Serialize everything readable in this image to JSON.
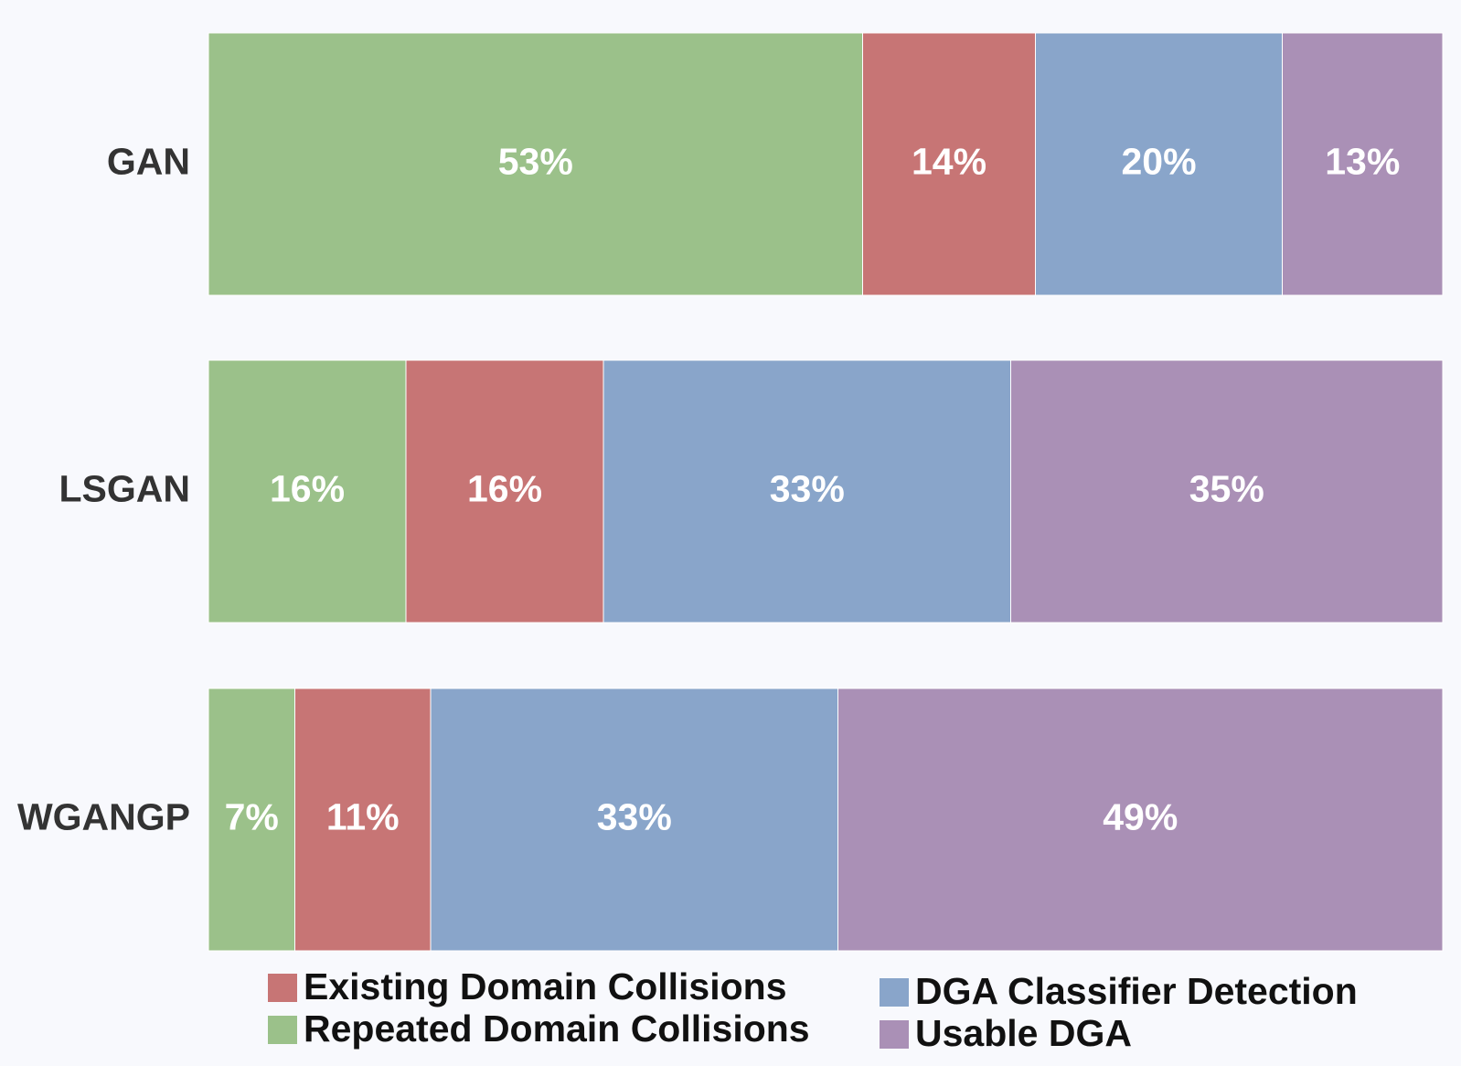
{
  "chart_data": {
    "type": "stacked-bar-horizontal",
    "categories": [
      "GAN",
      "LSGAN",
      "WGANGP"
    ],
    "xlim": [
      0,
      100
    ],
    "series": [
      {
        "name": "Repeated Domain Collisions",
        "color": "#9bc18a",
        "values": [
          53,
          16,
          7
        ],
        "value_labels": [
          "53%",
          "16%",
          "7%"
        ]
      },
      {
        "name": "Existing Domain Collisions",
        "color": "#c77575",
        "values": [
          14,
          16,
          11
        ],
        "value_labels": [
          "14%",
          "16%",
          "11%"
        ]
      },
      {
        "name": "DGA Classifier Detection",
        "color": "#89a5ca",
        "values": [
          20,
          33,
          33
        ],
        "value_labels": [
          "20%",
          "33%",
          "33%"
        ]
      },
      {
        "name": "Usable DGA",
        "color": "#aa90b6",
        "values": [
          13,
          35,
          49
        ],
        "value_labels": [
          "13%",
          "35%",
          "49%"
        ]
      }
    ]
  }
}
